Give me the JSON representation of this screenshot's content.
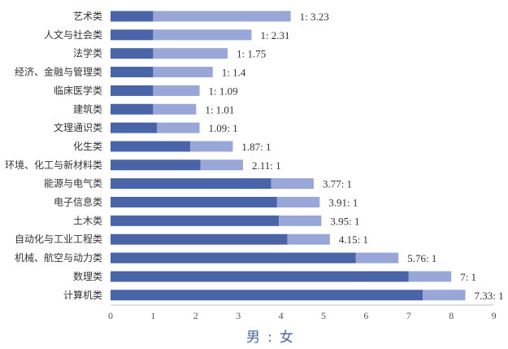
{
  "chart_data": {
    "type": "bar",
    "orientation": "horizontal",
    "stacked": true,
    "categories": [
      "艺术类",
      "人文与社会类",
      "法学类",
      "经济、金融与管理类",
      "临床医学类",
      "建筑类",
      "文理通识类",
      "化生类",
      "环境、化工与新材料类",
      "能源与电气类",
      "电子信息类",
      "土木类",
      "自动化与工业工程类",
      "机械、航空与动力类",
      "数理类",
      "计算机类"
    ],
    "series": [
      {
        "values": [
          1,
          1,
          1,
          1,
          1,
          1,
          1.09,
          1.87,
          2.11,
          3.77,
          3.91,
          3.95,
          4.15,
          5.76,
          7,
          7.33
        ]
      },
      {
        "values": [
          3.23,
          2.31,
          1.75,
          1.4,
          1.09,
          1.01,
          1,
          1,
          1,
          1,
          1,
          1,
          1,
          1,
          1,
          1
        ]
      }
    ],
    "data_labels": [
      "1: 3.23",
      "1: 2.31",
      "1: 1.75",
      "1: 1.4",
      "1: 1.09",
      "1: 1.01",
      "1.09: 1",
      "1.87: 1",
      "2.11: 1",
      "3.77: 1",
      "3.91: 1",
      "3.95: 1",
      "4.15: 1",
      "5.76: 1",
      "7: 1",
      "7.33: 1"
    ],
    "xlim": [
      0,
      9
    ],
    "xticks": [
      "0",
      "1",
      "2",
      "3",
      "4",
      "5",
      "6",
      "7",
      "8",
      "9"
    ],
    "xlabel": {
      "male": "男",
      "sep": ":",
      "female": "女"
    },
    "grid": false,
    "colors": {
      "male": "#4a64a8",
      "female": "#98a6d8",
      "axis": "#bfbfbf",
      "xlabel": "#4a64a8"
    }
  }
}
